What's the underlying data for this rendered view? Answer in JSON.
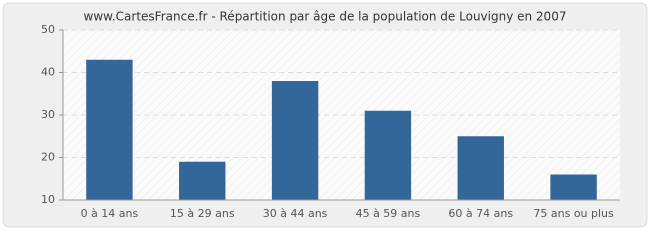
{
  "chart_data": {
    "type": "bar",
    "title": "www.CartesFrance.fr - Répartition par âge de la population de Louvigny en 2007",
    "categories": [
      "0 à 14 ans",
      "15 à 29 ans",
      "30 à 44 ans",
      "45 à 59 ans",
      "60 à 74 ans",
      "75 ans ou plus"
    ],
    "values": [
      43,
      19,
      38,
      31,
      25,
      16
    ],
    "color": "#336699",
    "ylim": [
      10,
      50
    ],
    "yticks": [
      10,
      20,
      30,
      40,
      50
    ],
    "grid": true
  }
}
